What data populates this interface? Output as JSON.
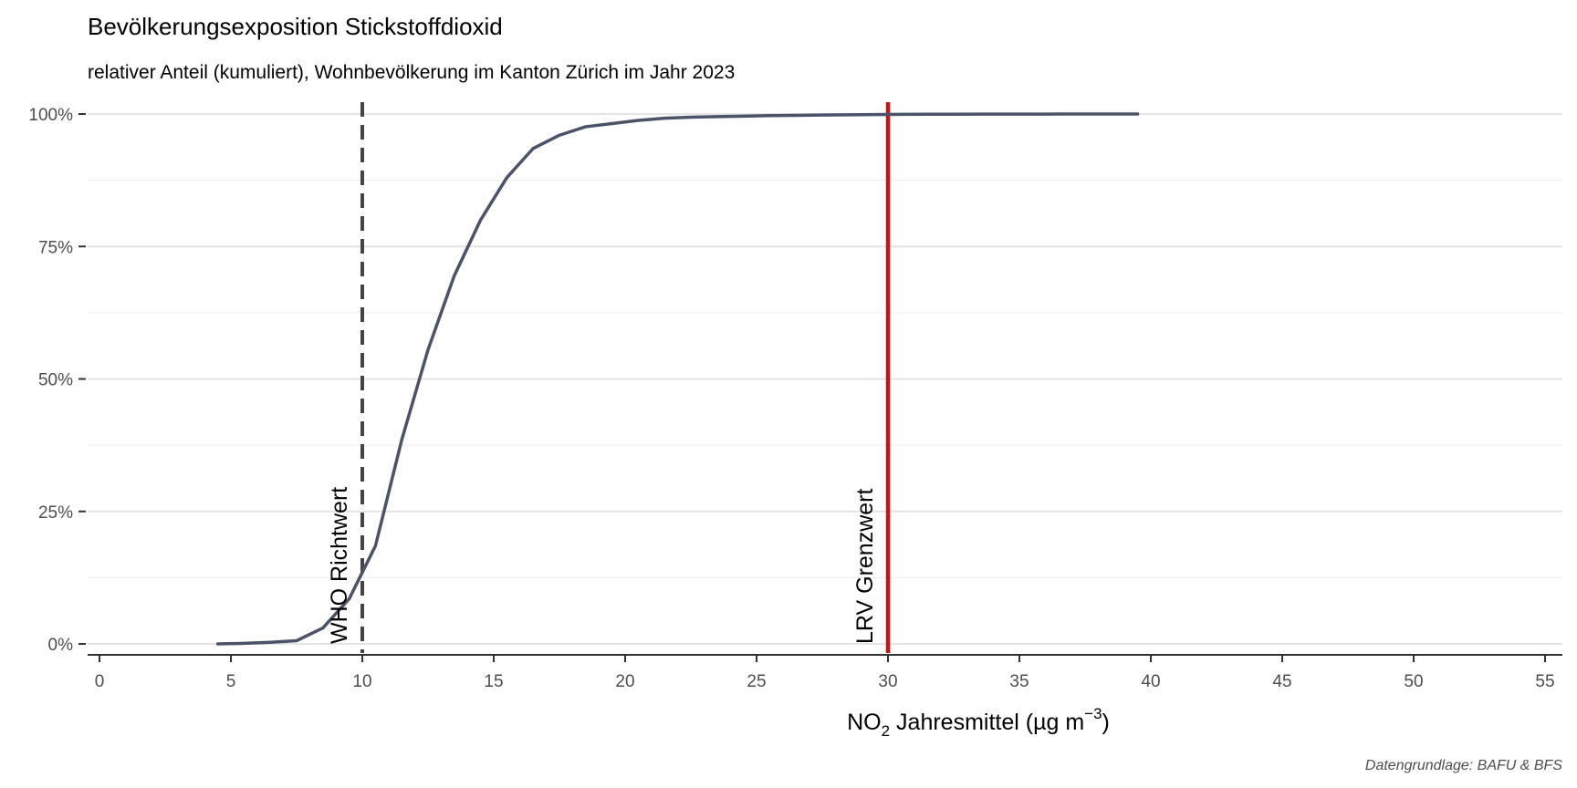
{
  "chart_data": {
    "type": "line",
    "title": "Bevölkerungsexposition Stickstoffdioxid",
    "subtitle": "relativer Anteil (kumuliert), Wohnbevölkerung im Kanton Zürich im Jahr 2023",
    "xlabel": {
      "main": "NO",
      "sub": "2",
      "rest": " Jahresmittel (µg m",
      "sup": "−3",
      "close": ")"
    },
    "ylabel": "",
    "caption": "Datengrundlage: BAFU & BFS",
    "xlim": [
      0,
      55
    ],
    "ylim": [
      0,
      1
    ],
    "x_ticks": [
      0,
      5,
      10,
      15,
      20,
      25,
      30,
      35,
      40,
      45,
      50,
      55
    ],
    "y_ticks": [
      0,
      0.25,
      0.5,
      0.75,
      1.0
    ],
    "y_tick_labels": [
      "0%",
      "25%",
      "50%",
      "75%",
      "100%"
    ],
    "grid": true,
    "series": [
      {
        "color": "#4a5368",
        "x": [
          4.5,
          5.5,
          6.5,
          7.5,
          8.5,
          9.5,
          10.5,
          11.5,
          12.5,
          13.5,
          14.5,
          15.5,
          16.5,
          17.5,
          18.5,
          19.5,
          20.5,
          21.5,
          22.5,
          23.5,
          24.5,
          25.5,
          26.5,
          27.5,
          28.5,
          29.5,
          30.5,
          31.5,
          32.5,
          33.5,
          34.5,
          35.5,
          36.5,
          37.5,
          38.5,
          39.5
        ],
        "y": [
          0.0,
          0.001,
          0.003,
          0.006,
          0.03,
          0.085,
          0.185,
          0.385,
          0.555,
          0.695,
          0.8,
          0.88,
          0.935,
          0.96,
          0.976,
          0.982,
          0.988,
          0.992,
          0.994,
          0.995,
          0.996,
          0.997,
          0.9975,
          0.998,
          0.9985,
          0.999,
          0.9993,
          0.9995,
          0.9996,
          0.9997,
          0.9998,
          0.9998,
          0.9999,
          0.9999,
          1.0,
          1.0
        ]
      }
    ],
    "reference_lines": [
      {
        "x": 10,
        "label": "WHO Richtwert",
        "style": "dashed",
        "color": "#444444"
      },
      {
        "x": 30,
        "label": "LRV Grenzwert",
        "style": "solid",
        "color": "#d01010"
      }
    ]
  }
}
